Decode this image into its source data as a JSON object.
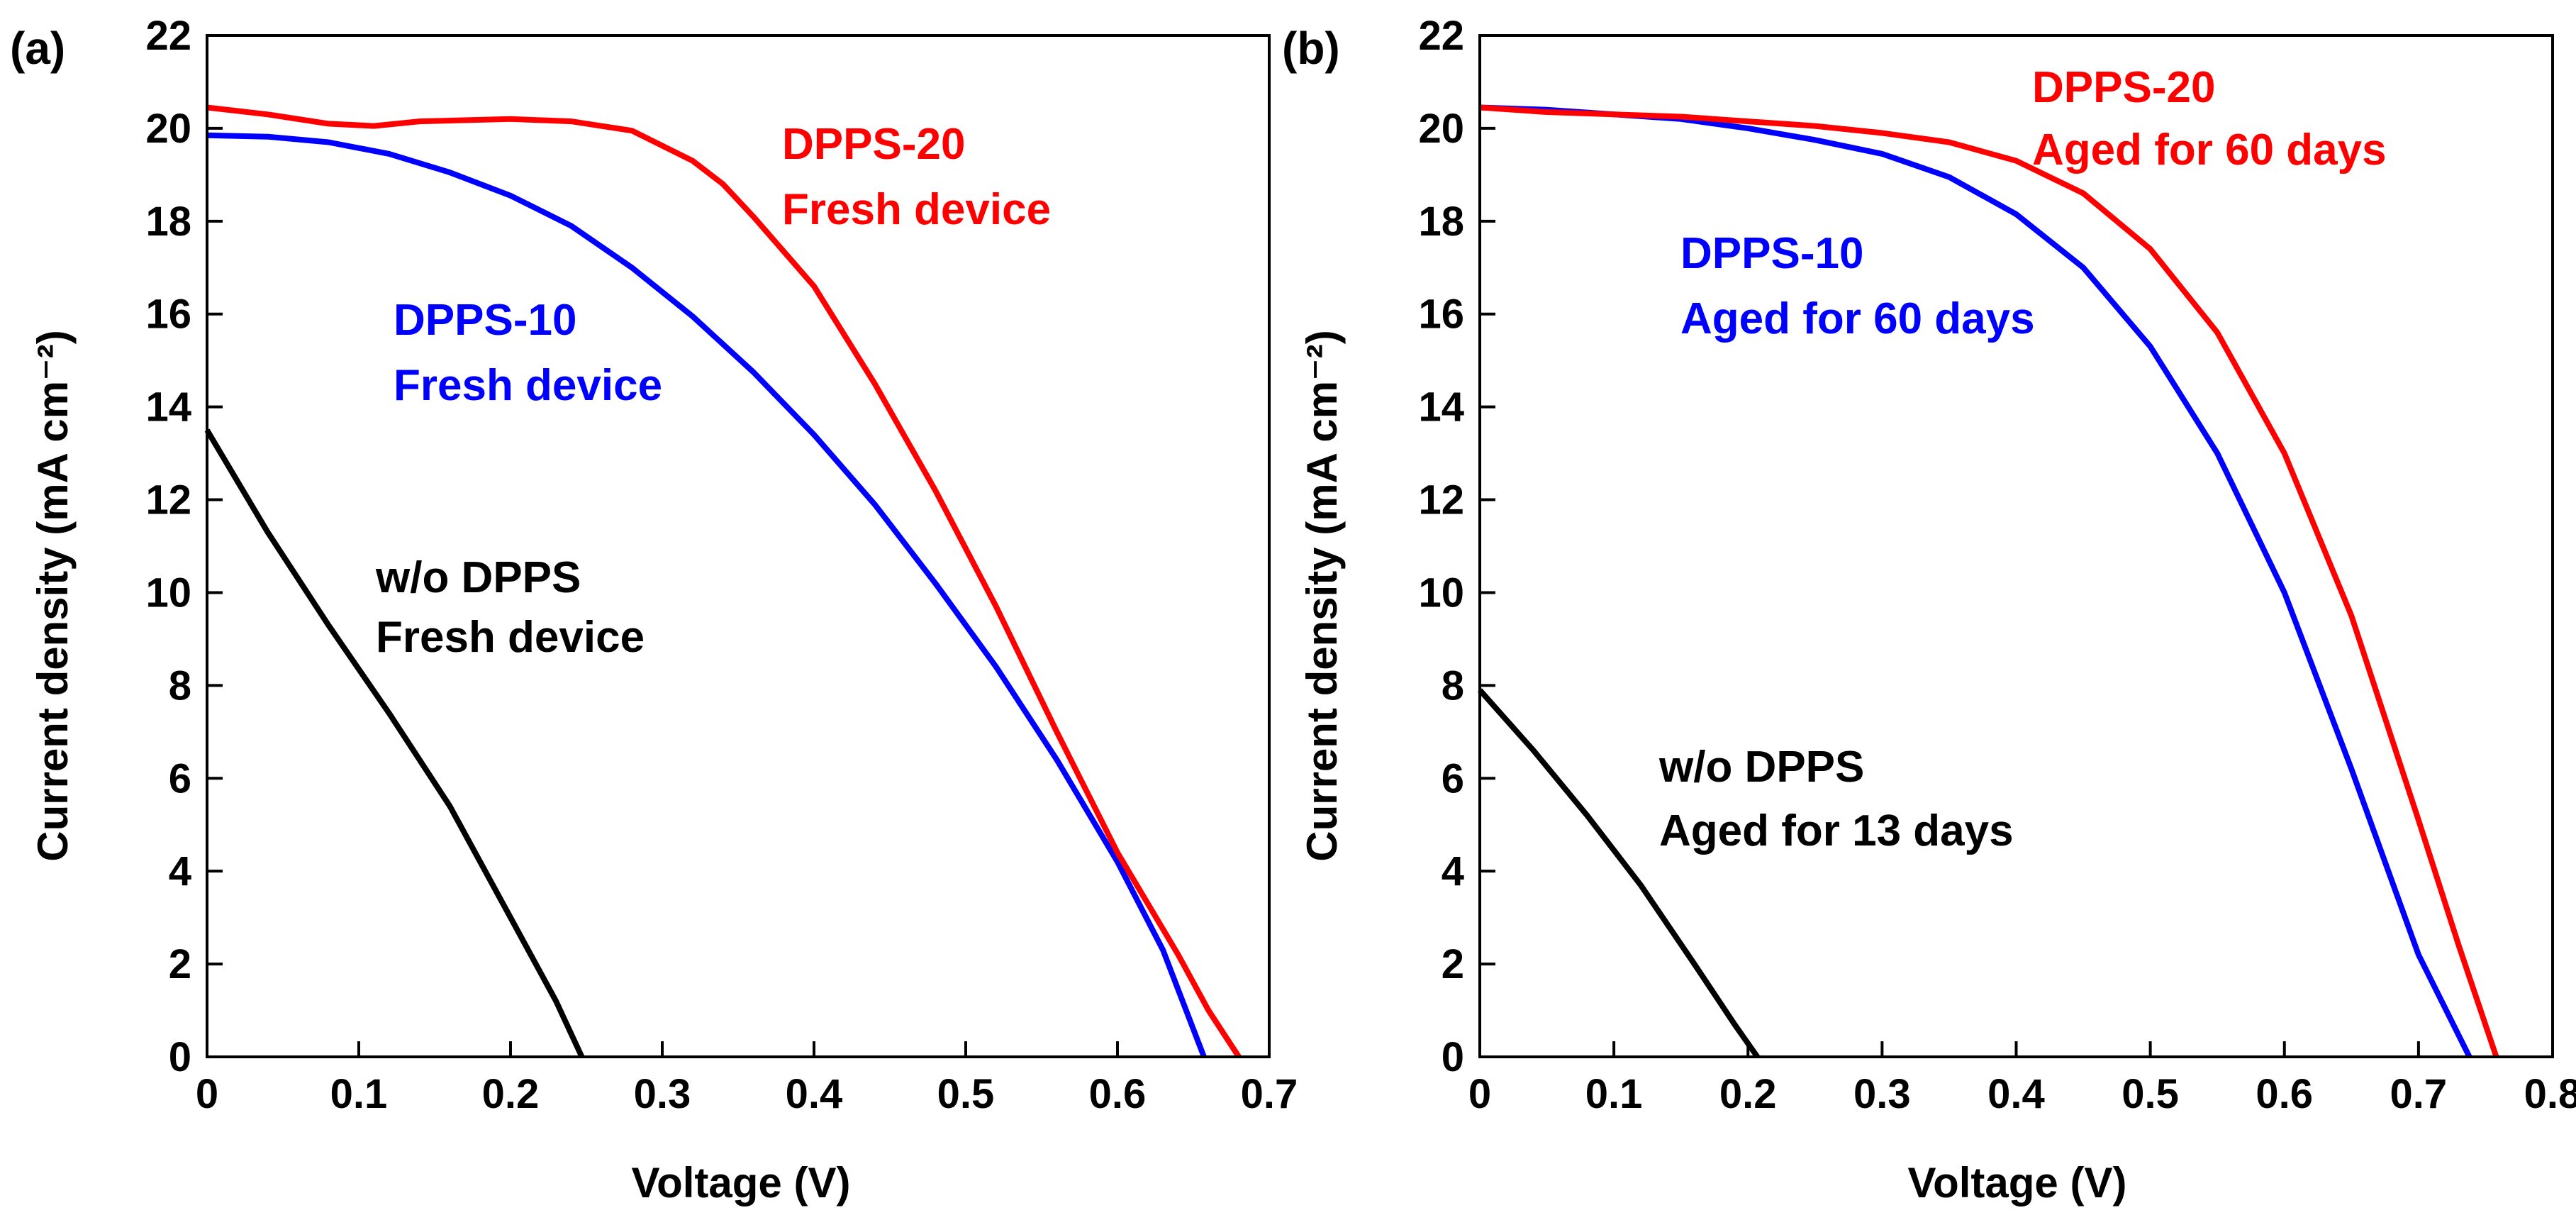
{
  "chart_data": [
    {
      "panel_label": "(a)",
      "type": "line",
      "xlabel": "Voltage (V)",
      "ylabel": "Current density (mA cm⁻²)",
      "xlim": [
        0,
        0.7
      ],
      "ylim": [
        0,
        22
      ],
      "xticks": [
        "0",
        "0.1",
        "0.2",
        "0.3",
        "0.4",
        "0.5",
        "0.6",
        "0.7"
      ],
      "yticks": [
        "0",
        "2",
        "4",
        "6",
        "8",
        "10",
        "12",
        "14",
        "16",
        "18",
        "20",
        "22"
      ],
      "series": [
        {
          "name": "w/o DPPS Fresh device",
          "color": "#000000",
          "label_lines": [
            "w/o DPPS",
            "Fresh device"
          ],
          "x": [
            0,
            0.04,
            0.08,
            0.12,
            0.16,
            0.2,
            0.23,
            0.247
          ],
          "y": [
            13.5,
            11.3,
            9.3,
            7.4,
            5.4,
            3.0,
            1.2,
            0
          ]
        },
        {
          "name": "DPPS-10 Fresh device",
          "color": "#0000ff",
          "label_lines": [
            "DPPS-10",
            "Fresh device"
          ],
          "x": [
            0,
            0.04,
            0.08,
            0.12,
            0.16,
            0.2,
            0.24,
            0.28,
            0.32,
            0.36,
            0.4,
            0.44,
            0.48,
            0.52,
            0.56,
            0.6,
            0.63,
            0.657
          ],
          "y": [
            19.85,
            19.82,
            19.7,
            19.45,
            19.05,
            18.55,
            17.9,
            17.0,
            15.95,
            14.75,
            13.4,
            11.9,
            10.2,
            8.4,
            6.4,
            4.2,
            2.3,
            0
          ]
        },
        {
          "name": "DPPS-20 Fresh device",
          "color": "#ff0000",
          "label_lines": [
            "DPPS-20",
            "Fresh device"
          ],
          "x": [
            0,
            0.04,
            0.08,
            0.11,
            0.14,
            0.2,
            0.24,
            0.28,
            0.32,
            0.34,
            0.36,
            0.4,
            0.44,
            0.48,
            0.52,
            0.56,
            0.6,
            0.64,
            0.66,
            0.68
          ],
          "y": [
            20.45,
            20.3,
            20.1,
            20.05,
            20.15,
            20.2,
            20.15,
            19.95,
            19.3,
            18.8,
            18.1,
            16.6,
            14.5,
            12.2,
            9.7,
            7.0,
            4.4,
            2.2,
            1.0,
            0
          ]
        }
      ]
    },
    {
      "panel_label": "(b)",
      "type": "line",
      "xlabel": "Voltage (V)",
      "ylabel": "Current density (mA cm⁻²)",
      "xlim": [
        0,
        0.8
      ],
      "ylim": [
        0,
        22
      ],
      "xticks": [
        "0",
        "0.1",
        "0.2",
        "0.3",
        "0.4",
        "0.5",
        "0.6",
        "0.7",
        "0.8"
      ],
      "yticks": [
        "0",
        "2",
        "4",
        "6",
        "8",
        "10",
        "12",
        "14",
        "16",
        "18",
        "20",
        "22"
      ],
      "series": [
        {
          "name": "w/o DPPS Aged for 13 days",
          "color": "#000000",
          "label_lines": [
            "w/o DPPS",
            "Aged for 13 days"
          ],
          "x": [
            0,
            0.04,
            0.08,
            0.12,
            0.16,
            0.19,
            0.207
          ],
          "y": [
            7.9,
            6.6,
            5.2,
            3.7,
            2.0,
            0.7,
            0
          ]
        },
        {
          "name": "DPPS-10 Aged for 60 days",
          "color": "#0000ff",
          "label_lines": [
            "DPPS-10",
            "Aged for 60 days"
          ],
          "x": [
            0,
            0.05,
            0.1,
            0.15,
            0.2,
            0.25,
            0.3,
            0.35,
            0.4,
            0.45,
            0.5,
            0.55,
            0.6,
            0.65,
            0.7,
            0.738
          ],
          "y": [
            20.45,
            20.4,
            20.3,
            20.2,
            20.0,
            19.75,
            19.45,
            18.95,
            18.15,
            17.0,
            15.3,
            13.0,
            10.0,
            6.2,
            2.2,
            0
          ]
        },
        {
          "name": "DPPS-20 Aged for 60 days",
          "color": "#ff0000",
          "label_lines": [
            "DPPS-20",
            "Aged for 60 days"
          ],
          "x": [
            0,
            0.05,
            0.1,
            0.15,
            0.2,
            0.25,
            0.3,
            0.35,
            0.4,
            0.45,
            0.5,
            0.55,
            0.6,
            0.65,
            0.7,
            0.73,
            0.758
          ],
          "y": [
            20.45,
            20.35,
            20.3,
            20.25,
            20.15,
            20.05,
            19.9,
            19.7,
            19.3,
            18.6,
            17.4,
            15.6,
            13.0,
            9.5,
            5.1,
            2.4,
            0
          ]
        }
      ]
    }
  ]
}
